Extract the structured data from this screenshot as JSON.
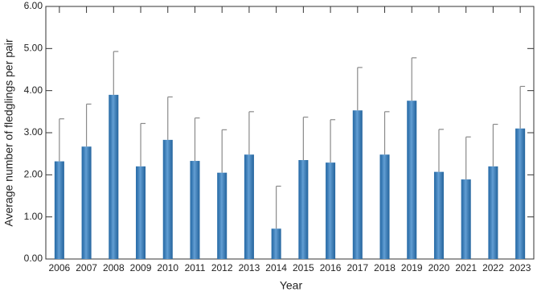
{
  "chart_data": {
    "type": "bar",
    "x_label": "Year",
    "y_label": "Average number of fledglings per pair",
    "categories": [
      "2006",
      "2007",
      "2008",
      "2009",
      "2010",
      "2011",
      "2012",
      "2013",
      "2014",
      "2015",
      "2016",
      "2017",
      "2018",
      "2019",
      "2020",
      "2021",
      "2022",
      "2023"
    ],
    "values": [
      2.32,
      2.67,
      3.9,
      2.2,
      2.83,
      2.33,
      2.05,
      2.48,
      0.72,
      2.35,
      2.29,
      3.53,
      2.48,
      3.76,
      2.07,
      1.89,
      2.2,
      3.1
    ],
    "errors": [
      1.01,
      1.01,
      1.03,
      1.02,
      1.02,
      1.02,
      1.02,
      1.02,
      1.01,
      1.02,
      1.02,
      1.02,
      1.02,
      1.02,
      1.01,
      1.01,
      1.0,
      1.0
    ],
    "color": "#2f7fc6",
    "error_color": "#8a8a8a",
    "ylim": [
      0,
      6
    ],
    "yticks": [
      {
        "value": 0,
        "label": "0.00"
      },
      {
        "value": 1,
        "label": "1.00"
      },
      {
        "value": 2,
        "label": "2.00"
      },
      {
        "value": 3,
        "label": "3.00"
      },
      {
        "value": 4,
        "label": "4.00"
      },
      {
        "value": 5,
        "label": "5.00"
      },
      {
        "value": 6,
        "label": "6.00"
      }
    ],
    "grid": false
  }
}
